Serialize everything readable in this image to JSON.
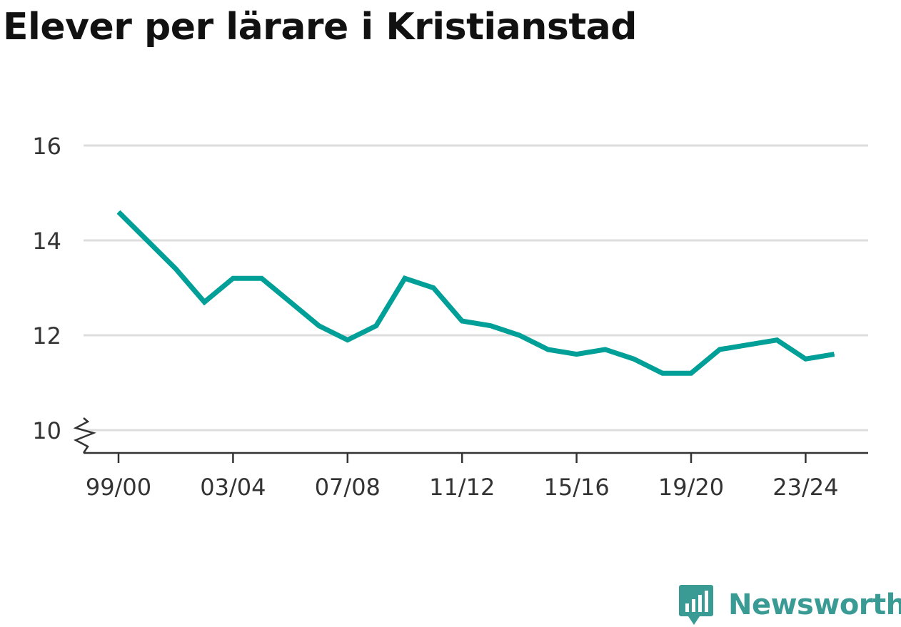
{
  "chart_data": {
    "type": "line",
    "title": "Elever per lärare i Kristianstad",
    "xlabel": "",
    "ylabel": "",
    "categories": [
      "99/00",
      "00/01",
      "01/02",
      "02/03",
      "03/04",
      "04/05",
      "05/06",
      "06/07",
      "07/08",
      "08/09",
      "09/10",
      "10/11",
      "11/12",
      "12/13",
      "13/14",
      "14/15",
      "15/16",
      "16/17",
      "17/18",
      "18/19",
      "19/20",
      "20/21",
      "21/22",
      "22/23",
      "23/24",
      "24/25"
    ],
    "x_tick_labels": [
      "99/00",
      "03/04",
      "07/08",
      "11/12",
      "15/16",
      "19/20",
      "23/24"
    ],
    "series": [
      {
        "values": [
          14.6,
          14.0,
          13.4,
          12.7,
          13.2,
          13.2,
          12.7,
          12.2,
          11.9,
          12.2,
          13.2,
          13.0,
          12.3,
          12.2,
          12.0,
          11.7,
          11.6,
          11.7,
          11.5,
          11.2,
          11.2,
          11.7,
          11.8,
          11.9,
          11.5,
          11.6
        ]
      }
    ],
    "y_ticks": [
      10,
      12,
      14,
      16
    ],
    "ylim": [
      10,
      16
    ],
    "y_axis_break": true,
    "grid": true,
    "colors": {
      "line": "#009f97",
      "grid": "#dddddd",
      "axis": "#333333"
    }
  },
  "logo": {
    "text": "Newsworthy",
    "color": "#3a9a94"
  }
}
